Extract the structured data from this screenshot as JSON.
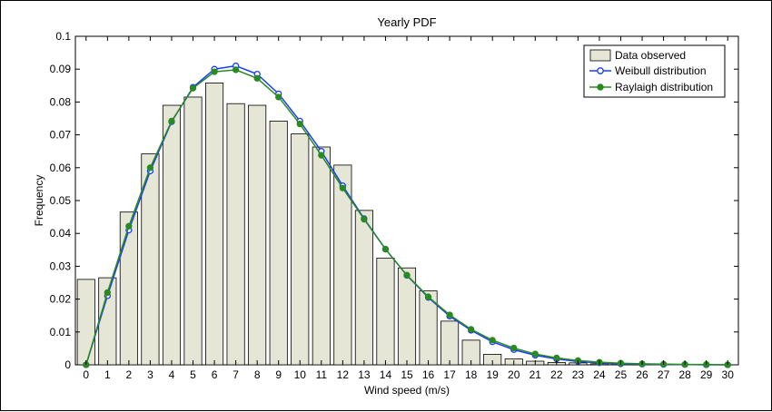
{
  "chart_data": {
    "type": "bar",
    "title": "Yearly PDF",
    "xlabel": "Wind speed (m/s)",
    "ylabel": "Frequency",
    "xlim": [
      -0.5,
      30.5
    ],
    "ylim": [
      0,
      0.1
    ],
    "x_ticks": [
      0,
      1,
      2,
      3,
      4,
      5,
      6,
      7,
      8,
      9,
      10,
      11,
      12,
      13,
      14,
      15,
      16,
      17,
      18,
      19,
      20,
      21,
      22,
      23,
      24,
      25,
      26,
      27,
      28,
      29,
      30
    ],
    "y_ticks": [
      0,
      0.01,
      0.02,
      0.03,
      0.04,
      0.05,
      0.06,
      0.07,
      0.08,
      0.09,
      0.1
    ],
    "y_tick_labels": [
      "0",
      "0.01",
      "0.02",
      "0.03",
      "0.04",
      "0.05",
      "0.06",
      "0.07",
      "0.08",
      "0.09",
      "0.1"
    ],
    "grid": false,
    "legend_position": "top-right",
    "x": [
      0,
      1,
      2,
      3,
      4,
      5,
      6,
      7,
      8,
      9,
      10,
      11,
      12,
      13,
      14,
      15,
      16,
      17,
      18,
      19,
      20,
      21,
      22,
      23,
      24,
      25,
      26,
      27,
      28,
      29,
      30
    ],
    "series": [
      {
        "name": "Data observed",
        "kind": "bar",
        "color": "#e6e6d7",
        "values": [
          0.026,
          0.0265,
          0.0465,
          0.0642,
          0.079,
          0.0815,
          0.0858,
          0.0795,
          0.079,
          0.0742,
          0.0703,
          0.0663,
          0.0608,
          0.047,
          0.0325,
          0.0295,
          0.0225,
          0.0133,
          0.0075,
          0.0032,
          0.0018,
          0.0011,
          0.0007,
          0.0006,
          0.0003,
          0.0003,
          0.0002,
          0.0002,
          0.0001,
          0.0001,
          0.0
        ]
      },
      {
        "name": "Weibull distribution",
        "kind": "line",
        "color": "#1a3cff",
        "marker": "open-circle",
        "values": [
          0.0,
          0.021,
          0.041,
          0.059,
          0.074,
          0.0845,
          0.09,
          0.091,
          0.0885,
          0.0825,
          0.0742,
          0.065,
          0.0545,
          0.0445,
          0.0352,
          0.0272,
          0.0205,
          0.0148,
          0.0105,
          0.007,
          0.0046,
          0.0029,
          0.0018,
          0.001,
          0.0006,
          0.0003,
          0.0002,
          0.0001,
          0.0001,
          0.0,
          0.0
        ]
      },
      {
        "name": "Raylaigh distribution",
        "kind": "line",
        "color": "#2a8a22",
        "marker": "filled-circle",
        "values": [
          0.0,
          0.022,
          0.0422,
          0.06,
          0.0742,
          0.0842,
          0.0892,
          0.0898,
          0.0872,
          0.0815,
          0.0733,
          0.0638,
          0.0538,
          0.0443,
          0.0352,
          0.0273,
          0.0207,
          0.0152,
          0.0108,
          0.0075,
          0.0051,
          0.0033,
          0.0021,
          0.0013,
          0.0008,
          0.0005,
          0.0003,
          0.0002,
          0.0001,
          0.0001,
          0.0
        ]
      }
    ]
  }
}
